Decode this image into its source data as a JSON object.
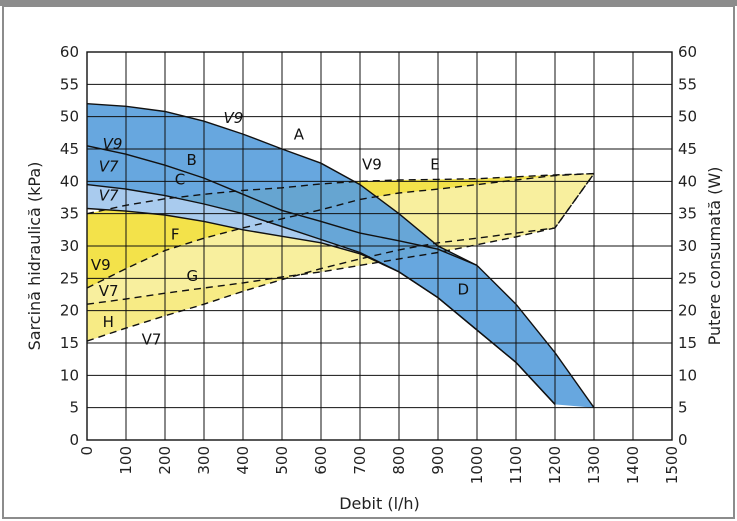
{
  "chart_data": {
    "type": "line",
    "title": "",
    "xlabel": "Debit (l/h)",
    "ylabel": "Sarcină hidraulică (kPa)",
    "y2label": "Putere consumată (W)",
    "xlim": [
      0,
      1500
    ],
    "ylim": [
      0,
      60
    ],
    "y2lim": [
      0,
      60
    ],
    "grid": true,
    "x_ticks": [
      "0",
      "100",
      "200",
      "300",
      "400",
      "500",
      "600",
      "700",
      "800",
      "900",
      "1000",
      "1100",
      "1200",
      "1300",
      "1400",
      "1500"
    ],
    "y_ticks": [
      "0",
      "5",
      "10",
      "15",
      "20",
      "25",
      "30",
      "35",
      "40",
      "45",
      "50",
      "55",
      "60"
    ],
    "y2_ticks": [
      "0",
      "5",
      "10",
      "15",
      "20",
      "25",
      "30",
      "35",
      "40",
      "45",
      "50",
      "55",
      "60"
    ],
    "colors": {
      "head_dark": "#5a9fdc",
      "head_light": "#a9cbee",
      "power_dark": "#f3e24a",
      "power_light": "#f8ef9e",
      "line": "#111111"
    },
    "head_series": [
      {
        "label": "V9",
        "x": [
          0,
          100,
          200,
          300,
          400,
          500,
          600,
          700,
          800,
          900,
          1000,
          1100,
          1200,
          1300
        ],
        "y": [
          52,
          51.6,
          50.8,
          49.3,
          47.3,
          45,
          42.8,
          39.5,
          35,
          30,
          27,
          21,
          13.5,
          5
        ]
      },
      {
        "label": "V9",
        "x": [
          0,
          100,
          200,
          300,
          400,
          500,
          600,
          700,
          800,
          900,
          1000
        ],
        "y": [
          45.5,
          44.2,
          42.5,
          40.5,
          38,
          35.5,
          33.8,
          32,
          30.8,
          29.5,
          27
        ]
      },
      {
        "label": "V7",
        "x": [
          0,
          100,
          200,
          300,
          400,
          500,
          600,
          700,
          800,
          900,
          1000,
          1100,
          1200
        ],
        "y": [
          39.5,
          38.8,
          37.8,
          36.5,
          35,
          33,
          31,
          29,
          26,
          22,
          17,
          12,
          5.5
        ]
      },
      {
        "label": "V7",
        "x": [
          0,
          100,
          200,
          300,
          400,
          500,
          600,
          700,
          800,
          900,
          1000,
          1100,
          1200
        ],
        "y": [
          35.8,
          35.4,
          34.8,
          33.8,
          32.5,
          31.5,
          30.5,
          28.8,
          26,
          22,
          17,
          12,
          5.5
        ]
      }
    ],
    "power_series": [
      {
        "label": "V9",
        "x": [
          0,
          100,
          200,
          300,
          400,
          500,
          600,
          700,
          800,
          900,
          1000,
          1100,
          1200,
          1300
        ],
        "y": [
          35,
          36.3,
          37.3,
          38,
          38.6,
          39,
          39.6,
          40,
          40.2,
          40.3,
          40.4,
          40.7,
          41,
          41.2
        ]
      },
      {
        "label": "V7",
        "x": [
          0,
          100,
          200,
          300,
          400,
          500,
          600,
          700,
          800,
          900,
          1000,
          1100,
          1200,
          1300
        ],
        "y": [
          15.3,
          17.3,
          19.2,
          21,
          23,
          24.8,
          26.5,
          28,
          29.4,
          30.5,
          31.2,
          32,
          32.8,
          41.2
        ]
      },
      {
        "label": "V9",
        "x": [
          0,
          100,
          200,
          300,
          400,
          500,
          600,
          700,
          800,
          900,
          1000,
          1100,
          1200,
          1300
        ],
        "y": [
          23.5,
          26.5,
          29.3,
          31.2,
          32.8,
          34.2,
          35.6,
          37.2,
          38.2,
          38.8,
          39.5,
          40.2,
          40.9,
          41.2
        ]
      },
      {
        "label": "V7",
        "x": [
          0,
          100,
          200,
          300,
          400,
          500,
          600,
          700,
          800,
          900,
          1000,
          1100,
          1200,
          1300
        ],
        "y": [
          21,
          21.8,
          22.7,
          23.5,
          24.3,
          25.2,
          26,
          27,
          28,
          29,
          30.2,
          31.4,
          32.8,
          41.2
        ]
      }
    ],
    "labels": [
      {
        "text": "A",
        "x": 530,
        "y": 46.5
      },
      {
        "text": "B",
        "x": 255,
        "y": 42.5
      },
      {
        "text": "C",
        "x": 225,
        "y": 39.5
      },
      {
        "text": "D",
        "x": 950,
        "y": 22.5
      },
      {
        "text": "E",
        "x": 880,
        "y": 41.8
      },
      {
        "text": "F",
        "x": 215,
        "y": 31
      },
      {
        "text": "G",
        "x": 255,
        "y": 24.6
      },
      {
        "text": "H",
        "x": 40,
        "y": 17.5
      },
      {
        "text": "V9",
        "x": 350,
        "y": 49,
        "italic": true
      },
      {
        "text": "V9",
        "x": 40,
        "y": 45,
        "italic": true
      },
      {
        "text": "V7",
        "x": 30,
        "y": 41.5,
        "italic": true
      },
      {
        "text": "V7",
        "x": 30,
        "y": 37,
        "italic": true
      },
      {
        "text": "V9",
        "x": 705,
        "y": 41.8
      },
      {
        "text": "V9",
        "x": 10,
        "y": 26.3
      },
      {
        "text": "V7",
        "x": 30,
        "y": 22.3
      },
      {
        "text": "V7",
        "x": 140,
        "y": 14.8
      }
    ]
  }
}
